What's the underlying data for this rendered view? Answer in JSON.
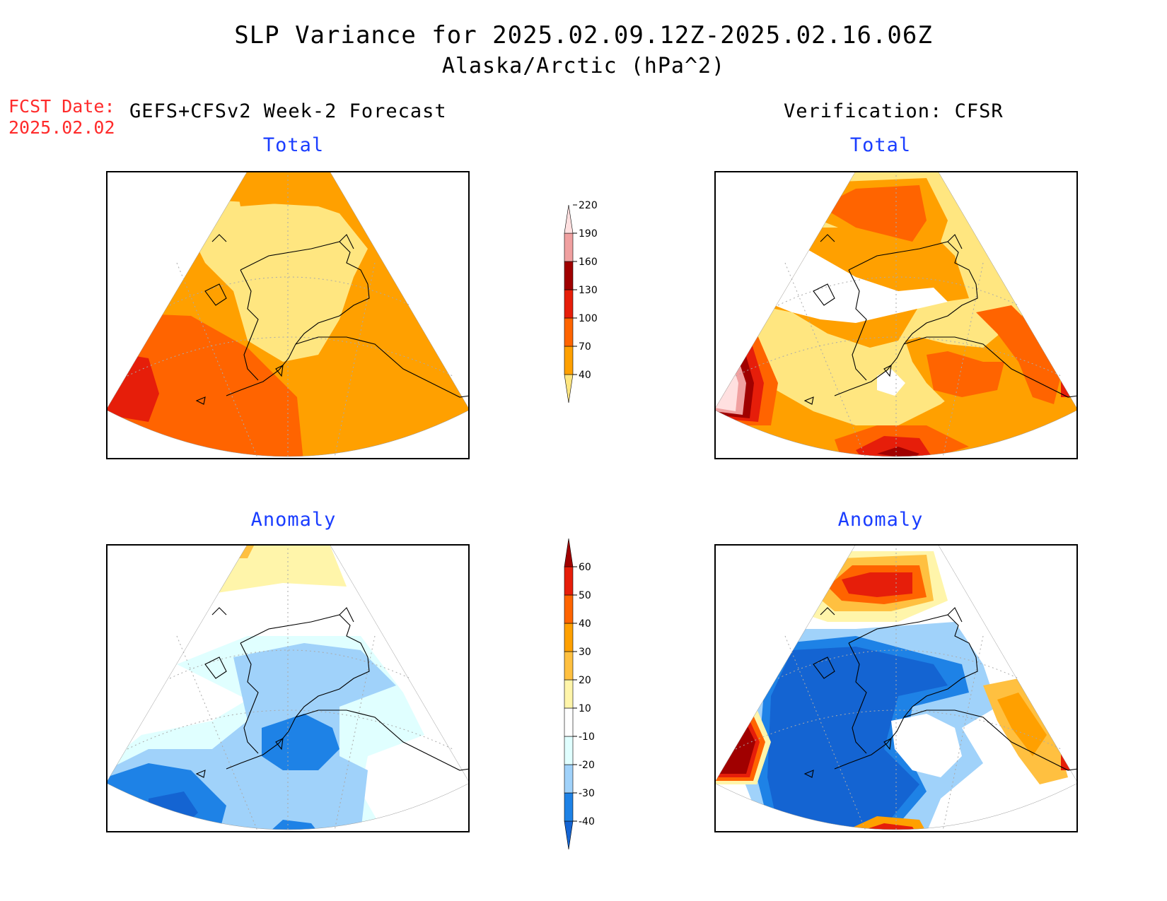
{
  "header": {
    "title": "SLP Variance for 2025.02.09.12Z-2025.02.16.06Z",
    "subtitle": "Alaska/Arctic (hPa^2)",
    "fcst_label": "FCST Date:",
    "fcst_date": "2025.02.02",
    "model_label": "GEFS+CFSv2 Week-2 Forecast",
    "verification_label": "Verification: CFSR"
  },
  "panels": {
    "forecast_total": {
      "title": "Total"
    },
    "verif_total": {
      "title": "Total"
    },
    "forecast_anomaly": {
      "title": "Anomaly"
    },
    "verif_anomaly": {
      "title": "Anomaly"
    }
  },
  "colorbars": {
    "total": {
      "levels": [
        "40",
        "70",
        "100",
        "130",
        "160",
        "190",
        "220"
      ],
      "colors": [
        "#ffe680",
        "#ffa000",
        "#ff6400",
        "#e61e0a",
        "#a00000",
        "#f0a0a0",
        "#ffe0e0"
      ]
    },
    "anomaly": {
      "levels": [
        "-40",
        "-30",
        "-20",
        "-10",
        "10",
        "20",
        "30",
        "40",
        "50",
        "60"
      ],
      "colors": [
        "#1464d2",
        "#1e82e6",
        "#a0d2fa",
        "#e0ffff",
        "#ffffff",
        "#fff5aa",
        "#ffc040",
        "#ffa000",
        "#ff6400",
        "#e61e0a",
        "#a00000"
      ]
    }
  },
  "colors": {
    "fcst_date": "#ff2a2a",
    "panel_title": "#1a3dff"
  }
}
